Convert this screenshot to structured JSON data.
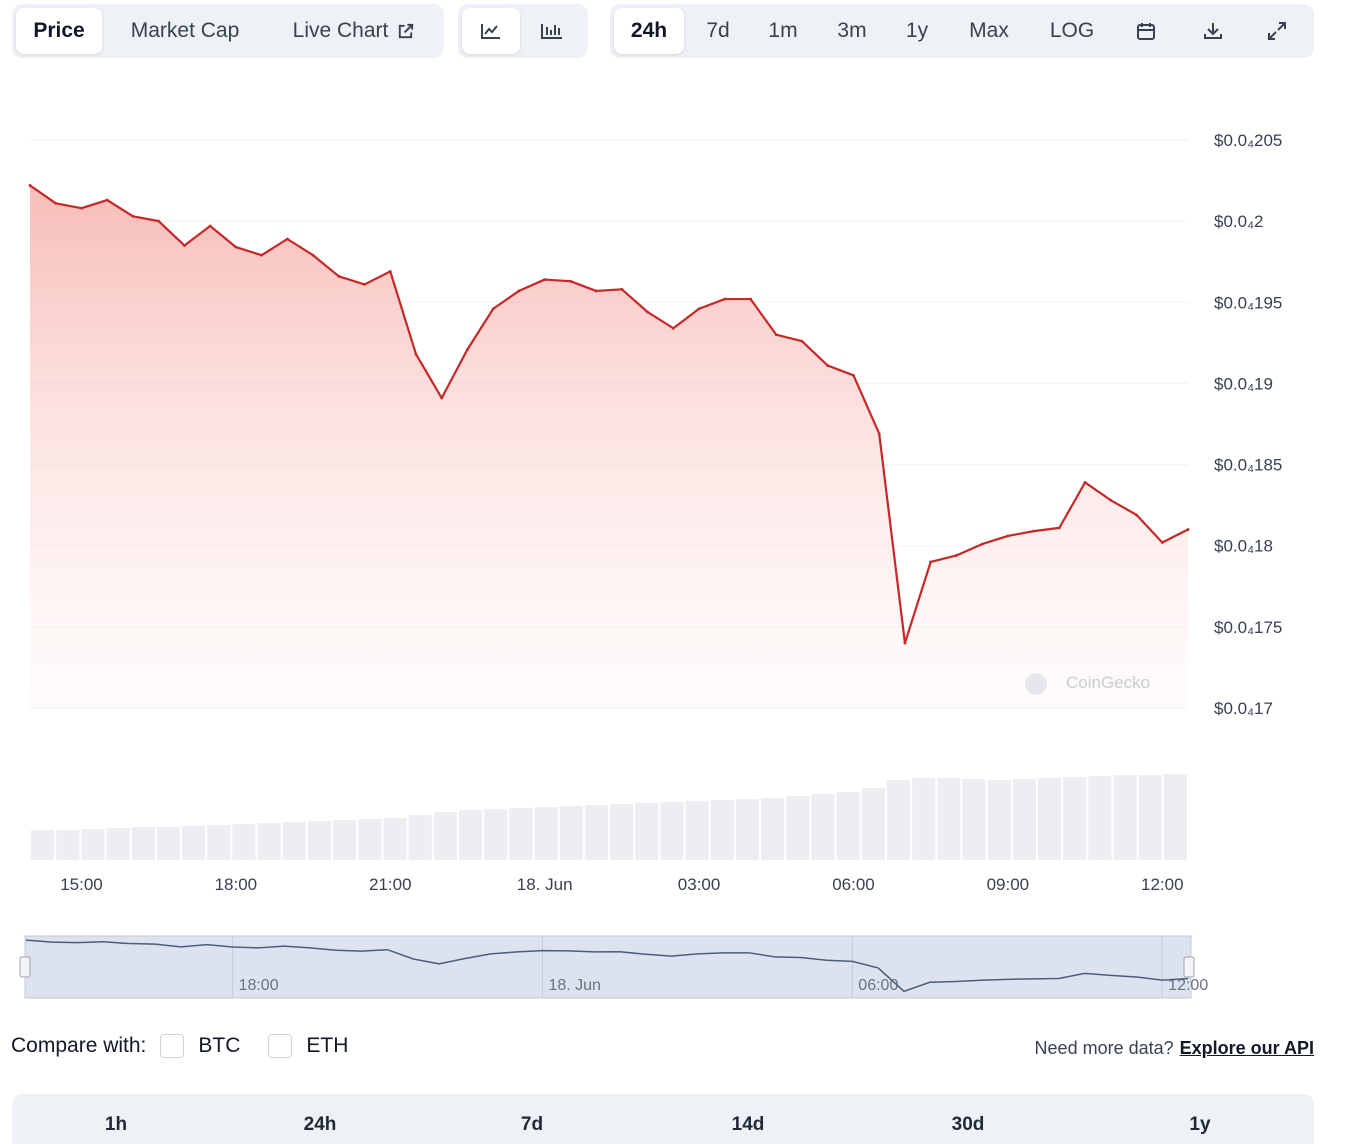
{
  "toolbar": {
    "views": [
      {
        "label": "Price",
        "active": true
      },
      {
        "label": "Market Cap",
        "active": false
      },
      {
        "label": "Live Chart",
        "active": false,
        "icon": "external-link-icon"
      }
    ],
    "chart_types": [
      {
        "icon": "line-chart-icon",
        "active": true
      },
      {
        "icon": "candlestick-chart-icon",
        "active": false
      }
    ],
    "ranges": [
      {
        "label": "24h",
        "active": true
      },
      {
        "label": "7d",
        "active": false
      },
      {
        "label": "1m",
        "active": false
      },
      {
        "label": "3m",
        "active": false
      },
      {
        "label": "1y",
        "active": false
      },
      {
        "label": "Max",
        "active": false
      },
      {
        "label": "LOG",
        "active": false
      }
    ],
    "tools": [
      {
        "icon": "calendar-icon"
      },
      {
        "icon": "download-icon"
      },
      {
        "icon": "expand-icon"
      }
    ]
  },
  "chart_data": {
    "type": "area",
    "x": [
      "14:00",
      "14:30",
      "15:00",
      "15:30",
      "16:00",
      "16:30",
      "17:00",
      "17:30",
      "18:00",
      "18:30",
      "19:00",
      "19:30",
      "20:00",
      "20:30",
      "21:00",
      "21:30",
      "22:00",
      "22:30",
      "23:00",
      "23:30",
      "18. Jun 00:00",
      "00:30",
      "01:00",
      "01:30",
      "02:00",
      "02:30",
      "03:00",
      "03:30",
      "04:00",
      "04:30",
      "05:00",
      "05:30",
      "06:00",
      "06:30",
      "07:00",
      "07:30",
      "08:00",
      "08:30",
      "09:00",
      "09:30",
      "10:00",
      "10:30",
      "11:00",
      "11:30",
      "12:00",
      "12:30"
    ],
    "series": [
      {
        "color": "#c62828",
        "values": [
          2.022e-05,
          2.011e-05,
          2.008e-05,
          2.013e-05,
          2.003e-05,
          2e-05,
          1.985e-05,
          1.997e-05,
          1.984e-05,
          1.979e-05,
          1.989e-05,
          1.979e-05,
          1.966e-05,
          1.961e-05,
          1.969e-05,
          1.918e-05,
          1.891e-05,
          1.921e-05,
          1.946e-05,
          1.957e-05,
          1.964e-05,
          1.963e-05,
          1.957e-05,
          1.958e-05,
          1.944e-05,
          1.934e-05,
          1.946e-05,
          1.952e-05,
          1.952e-05,
          1.93e-05,
          1.926e-05,
          1.911e-05,
          1.905e-05,
          1.869e-05,
          1.74e-05,
          1.79e-05,
          1.794e-05,
          1.801e-05,
          1.806e-05,
          1.809e-05,
          1.811e-05,
          1.839e-05,
          1.828e-05,
          1.819e-05,
          1.802e-05,
          1.81e-05
        ]
      }
    ],
    "volume": [
      30,
      30,
      31,
      32,
      33,
      33,
      34,
      35,
      36,
      37,
      38,
      39,
      40,
      41,
      42,
      45,
      48,
      50,
      51,
      52,
      53,
      54,
      55,
      56,
      57,
      58,
      59,
      60,
      61,
      62,
      64,
      66,
      68,
      72,
      80,
      82,
      82,
      81,
      80,
      81,
      82,
      83,
      84,
      85,
      85,
      86
    ],
    "y_ticks": [
      "$0.0₄205",
      "$0.0₄2",
      "$0.0₄195",
      "$0.0₄19",
      "$0.0₄185",
      "$0.0₄18",
      "$0.0₄175",
      "$0.0₄17"
    ],
    "y_tick_values": [
      2.05e-05,
      2e-05,
      1.95e-05,
      1.9e-05,
      1.85e-05,
      1.8e-05,
      1.75e-05,
      1.7e-05
    ],
    "ylim": [
      1.7e-05,
      2.05e-05
    ],
    "x_ticks": [
      {
        "label": "15:00",
        "index": 2
      },
      {
        "label": "18:00",
        "index": 8
      },
      {
        "label": "21:00",
        "index": 14
      },
      {
        "label": "18. Jun",
        "index": 20
      },
      {
        "label": "03:00",
        "index": 26
      },
      {
        "label": "06:00",
        "index": 32
      },
      {
        "label": "09:00",
        "index": 38
      },
      {
        "label": "12:00",
        "index": 44
      }
    ],
    "navigator_ticks": [
      {
        "label": "18:00",
        "index": 8
      },
      {
        "label": "18. Jun",
        "index": 20
      },
      {
        "label": "06:00",
        "index": 32
      },
      {
        "label": "12:00",
        "index": 44
      }
    ],
    "watermark": "CoinGecko",
    "grid": true
  },
  "compare": {
    "label": "Compare with:",
    "options": [
      "BTC",
      "ETH"
    ]
  },
  "api": {
    "text": "Need more data?",
    "link": "Explore our API"
  },
  "bottom_tabs": [
    "1h",
    "24h",
    "7d",
    "14d",
    "30d",
    "1y"
  ]
}
